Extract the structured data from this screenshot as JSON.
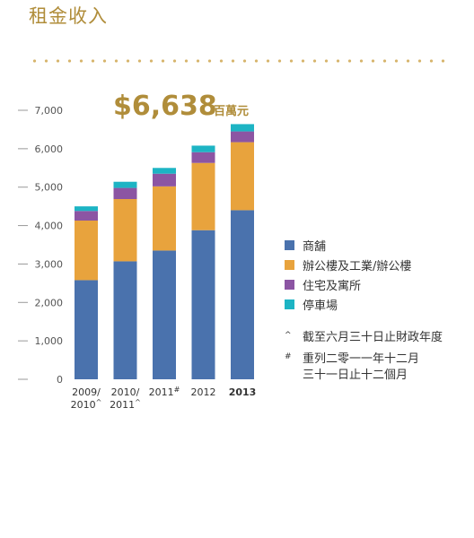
{
  "title": "租金收入",
  "chart_data": {
    "type": "bar",
    "stacked": true,
    "categories": [
      "2009/\n2010^",
      "2010/\n2011^",
      "2011#",
      "2012",
      "2013"
    ],
    "series": [
      {
        "name": "商舖",
        "color": "#4a72ad",
        "values": [
          2580,
          3070,
          3350,
          3880,
          4400
        ]
      },
      {
        "name": "辦公樓及工業/辦公樓",
        "color": "#e8a33d",
        "values": [
          1550,
          1620,
          1670,
          1750,
          1770
        ]
      },
      {
        "name": "住宅及寓所",
        "color": "#8c55a3",
        "values": [
          250,
          290,
          330,
          280,
          280
        ]
      },
      {
        "name": "停車場",
        "color": "#1db4c4",
        "values": [
          120,
          160,
          150,
          170,
          190
        ]
      }
    ],
    "yticks": [
      "7,000",
      "6,000",
      "5,000",
      "4,000",
      "3,000",
      "2,000",
      "1,000",
      "0"
    ],
    "ytick_values": [
      7000,
      6000,
      5000,
      4000,
      3000,
      2000,
      1000,
      0
    ],
    "ylim": [
      0,
      7000
    ],
    "highlight_value": "$6,638",
    "highlight_unit": "百萬元",
    "highlight_category": "2013"
  },
  "footnotes": [
    {
      "mark": "^",
      "text": "截至六月三十日止財政年度"
    },
    {
      "mark": "#",
      "text": "重列二零一一年十二月\n三十一日止十二個月"
    }
  ]
}
